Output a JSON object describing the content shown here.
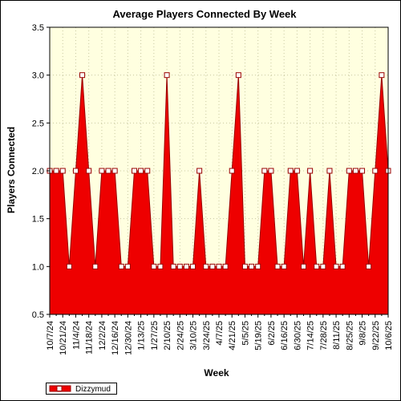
{
  "chart_data": {
    "type": "area",
    "title": "Average Players Connected By Week",
    "xlabel": "Week",
    "ylabel": "Players Connected",
    "ylim": [
      0.5,
      3.5
    ],
    "yticks": [
      "0.5",
      "1.0",
      "1.5",
      "2.0",
      "2.5",
      "3.0",
      "3.5"
    ],
    "grid": true,
    "legend_position": "bottom-left",
    "colors": {
      "fill": "#ee0000",
      "edge": "#990000",
      "plot_bg": "#ffffe0",
      "grid": "#c8c8a0"
    },
    "x": [
      "10/7/24",
      "10/14/24",
      "10/21/24",
      "10/28/24",
      "11/4/24",
      "11/11/24",
      "11/18/24",
      "11/25/24",
      "12/2/24",
      "12/9/24",
      "12/16/24",
      "12/23/24",
      "12/30/24",
      "1/6/25",
      "1/13/25",
      "1/20/25",
      "1/27/25",
      "2/3/25",
      "2/10/25",
      "2/17/25",
      "2/24/25",
      "3/3/25",
      "3/10/25",
      "3/17/25",
      "3/24/25",
      "3/31/25",
      "4/7/25",
      "4/14/25",
      "4/21/25",
      "4/28/25",
      "5/5/25",
      "5/12/25",
      "5/19/25",
      "5/26/25",
      "6/2/25",
      "6/9/25",
      "6/16/25",
      "6/23/25",
      "6/30/25",
      "7/7/25",
      "7/14/25",
      "7/21/25",
      "7/28/25",
      "8/4/25",
      "8/11/25",
      "8/18/25",
      "8/25/25",
      "9/1/25",
      "9/8/25",
      "9/15/25",
      "9/22/25",
      "9/29/25",
      "10/6/25"
    ],
    "xtick_labels": [
      "10/7/24",
      "10/21/24",
      "11/4/24",
      "11/18/24",
      "12/2/24",
      "12/16/24",
      "12/30/24",
      "1/13/25",
      "1/27/25",
      "2/10/25",
      "2/24/25",
      "3/10/25",
      "3/24/25",
      "4/7/25",
      "4/21/25",
      "5/5/25",
      "5/19/25",
      "6/2/25",
      "6/16/25",
      "6/30/25",
      "7/14/25",
      "7/28/25",
      "8/11/25",
      "8/25/25",
      "9/8/25",
      "9/22/25",
      "10/6/25"
    ],
    "series": [
      {
        "name": "Dizzymud",
        "values": [
          2,
          2,
          2,
          1,
          2,
          3,
          2,
          1,
          2,
          2,
          2,
          1,
          1,
          2,
          2,
          2,
          1,
          1,
          3,
          1,
          1,
          1,
          1,
          2,
          1,
          1,
          1,
          1,
          2,
          3,
          1,
          1,
          1,
          2,
          2,
          1,
          1,
          2,
          2,
          1,
          2,
          1,
          1,
          2,
          1,
          1,
          2,
          2,
          2,
          1,
          2,
          3,
          2
        ]
      }
    ]
  }
}
